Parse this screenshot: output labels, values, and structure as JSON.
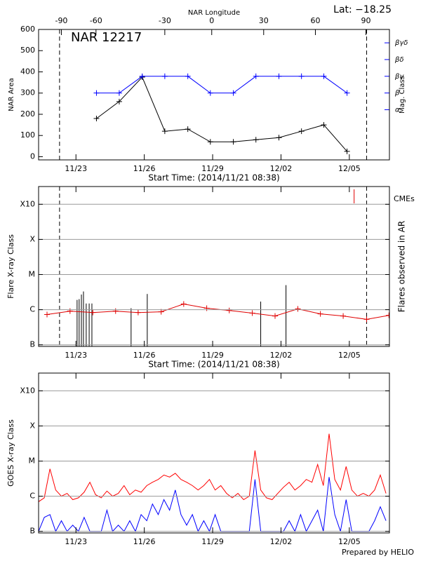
{
  "chart_data": [
    {
      "type": "line",
      "title": "NAR 12217",
      "corner_label": "Lat: −18.25",
      "x2label": "NAR Longitude",
      "xlabel": "Start Time: (2014/11/21 08:38)",
      "ylabel": "NAR Area",
      "y2label": "Mag. Class",
      "xlim": [
        0,
        15.4
      ],
      "xticks": [
        {
          "value": 1.64,
          "label": "11/23"
        },
        {
          "value": 4.64,
          "label": "11/26"
        },
        {
          "value": 7.64,
          "label": "11/29"
        },
        {
          "value": 10.64,
          "label": "12/02"
        },
        {
          "value": 13.64,
          "label": "12/05"
        }
      ],
      "x2ticks": [
        {
          "value": 1.0,
          "label": "-90"
        },
        {
          "value": 2.52,
          "label": "-60"
        },
        {
          "value": 5.54,
          "label": "-30"
        },
        {
          "value": 7.6,
          "label": "0"
        },
        {
          "value": 9.88,
          "label": "30"
        },
        {
          "value": 12.15,
          "label": "60"
        },
        {
          "value": 14.37,
          "label": "90"
        }
      ],
      "ylim": [
        -15,
        600
      ],
      "yticks": [
        0,
        100,
        200,
        300,
        400,
        500,
        600
      ],
      "y2lim": [
        -2,
        5.8
      ],
      "y2ticks": [
        {
          "value": 1,
          "label": "α"
        },
        {
          "value": 2,
          "label": "β"
        },
        {
          "value": 3,
          "label": "βγ"
        },
        {
          "value": 4,
          "label": "βδ"
        },
        {
          "value": 5,
          "label": "βγδ"
        }
      ],
      "y2color": "#0000ff",
      "markers": true,
      "vlines": [
        0.92,
        14.4
      ],
      "series": [
        {
          "color": "#000000",
          "x": [
            2.54,
            3.54,
            4.55,
            5.54,
            6.55,
            7.54,
            8.55,
            9.54,
            10.55,
            11.54,
            12.52,
            13.54
          ],
          "values": [
            180,
            260,
            375,
            120,
            130,
            70,
            70,
            80,
            90,
            120,
            150,
            25
          ]
        },
        {
          "color": "#0000ff",
          "axis": "y2",
          "x": [
            2.54,
            3.54,
            4.55,
            5.54,
            6.55,
            7.54,
            8.55,
            9.54,
            10.55,
            11.54,
            12.52,
            13.54
          ],
          "values": [
            2,
            2,
            3,
            3,
            3,
            2,
            2,
            3,
            3,
            3,
            3,
            2
          ]
        }
      ]
    },
    {
      "type": "line",
      "xlabel": "Start Time: (2014/11/21 08:38)",
      "ylabel": "Flare X-ray Class",
      "y2label": "Flares observed in AR",
      "cme_label": "CMEs",
      "cme_color": "#e00000",
      "cmes": [
        13.85
      ],
      "log": true,
      "grid": true,
      "markers": true,
      "vlines": [
        0.92,
        14.4
      ],
      "xlim": [
        0,
        15.4
      ],
      "xticks": [
        {
          "value": 1.64,
          "label": "11/23"
        },
        {
          "value": 4.64,
          "label": "11/26"
        },
        {
          "value": 7.64,
          "label": "11/29"
        },
        {
          "value": 10.64,
          "label": "12/02"
        },
        {
          "value": 13.64,
          "label": "12/05"
        }
      ],
      "ylim": [
        9e-08,
        0.0032
      ],
      "yticks": [
        {
          "value": 1e-07,
          "label": "B"
        },
        {
          "value": 1e-06,
          "label": "C"
        },
        {
          "value": 1e-05,
          "label": "M"
        },
        {
          "value": 0.0001,
          "label": "X"
        },
        {
          "value": 0.001,
          "label": "X10"
        }
      ],
      "flares": {
        "color": "#000000",
        "x": [
          1.69,
          1.78,
          1.88,
          1.97,
          2.09,
          2.22,
          2.34,
          4.06,
          4.77,
          9.75,
          10.86
        ],
        "values": [
          1.9e-06,
          2e-06,
          2.7e-06,
          3.3e-06,
          1.5e-06,
          1.5e-06,
          1.5e-06,
          1.1e-06,
          2.8e-06,
          1.7e-06,
          5e-06
        ]
      },
      "series": [
        {
          "color": "#e00000",
          "x": [
            0.37,
            1.38,
            2.38,
            3.38,
            4.37,
            5.38,
            6.37,
            7.38,
            8.37,
            9.38,
            10.38,
            11.38,
            12.37,
            13.37,
            14.4,
            15.38
          ],
          "values": [
            7.3e-07,
            9.1e-07,
            8.3e-07,
            9.1e-07,
            8.3e-07,
            8.7e-07,
            1.45e-06,
            1.1e-06,
            9.5e-07,
            8e-07,
            6.6e-07,
            1.05e-06,
            7.6e-07,
            6.6e-07,
            5.3e-07,
            6.9e-07
          ]
        }
      ]
    },
    {
      "type": "line",
      "ylabel": "GOES X-ray Class",
      "log": true,
      "grid": true,
      "xlim": [
        0,
        15.4
      ],
      "xticks": [
        {
          "value": 1.64,
          "label": "11/23"
        },
        {
          "value": 4.64,
          "label": "11/26"
        },
        {
          "value": 7.64,
          "label": "11/29"
        },
        {
          "value": 10.64,
          "label": "12/02"
        },
        {
          "value": 13.64,
          "label": "12/05"
        }
      ],
      "ylim": [
        9e-08,
        0.0032
      ],
      "yticks": [
        {
          "value": 1e-07,
          "label": "B"
        },
        {
          "value": 1e-06,
          "label": "C"
        },
        {
          "value": 1e-05,
          "label": "M"
        },
        {
          "value": 0.0001,
          "label": "X"
        },
        {
          "value": 0.001,
          "label": "X10"
        }
      ],
      "x": [
        0,
        0.25,
        0.5,
        0.75,
        1,
        1.25,
        1.5,
        1.75,
        2,
        2.25,
        2.5,
        2.75,
        3,
        3.25,
        3.5,
        3.75,
        4,
        4.25,
        4.5,
        4.75,
        5,
        5.25,
        5.5,
        5.75,
        6,
        6.25,
        6.5,
        6.75,
        7,
        7.25,
        7.5,
        7.75,
        8,
        8.25,
        8.5,
        8.75,
        9,
        9.25,
        9.5,
        9.75,
        10,
        10.25,
        10.5,
        10.75,
        11,
        11.25,
        11.5,
        11.75,
        12,
        12.25,
        12.5,
        12.75,
        13,
        13.25,
        13.5,
        13.75,
        14,
        14.25,
        14.5,
        14.75,
        15,
        15.25
      ],
      "series": [
        {
          "color": "#ff0000",
          "values": [
            7e-07,
            9e-07,
            6e-06,
            1.5e-06,
            1e-06,
            1.2e-06,
            8e-07,
            9e-07,
            1.3e-06,
            2.5e-06,
            1.1e-06,
            9e-07,
            1.4e-06,
            1e-06,
            1.2e-06,
            2e-06,
            1.1e-06,
            1.5e-06,
            1.3e-06,
            2e-06,
            2.5e-06,
            3e-06,
            4e-06,
            3.5e-06,
            4.5e-06,
            3e-06,
            2.5e-06,
            2e-06,
            1.5e-06,
            2e-06,
            3e-06,
            1.5e-06,
            2e-06,
            1.2e-06,
            9e-07,
            1.2e-06,
            8e-07,
            1e-06,
            2e-05,
            1.5e-06,
            9e-07,
            8e-07,
            1.2e-06,
            1.8e-06,
            2.5e-06,
            1.5e-06,
            2e-06,
            3e-06,
            2.5e-06,
            8e-06,
            2e-06,
            6e-05,
            3e-06,
            1.5e-06,
            7e-06,
            1.5e-06,
            1e-06,
            1.2e-06,
            1e-06,
            1.5e-06,
            4e-06,
            1.2e-06
          ]
        },
        {
          "color": "#0000ff",
          "values": [
            1e-07,
            2.5e-07,
            3e-07,
            1e-07,
            2e-07,
            1e-07,
            1.5e-07,
            1e-07,
            2.5e-07,
            1e-07,
            1e-07,
            1e-07,
            4e-07,
            1e-07,
            1.5e-07,
            1e-07,
            2e-07,
            1e-07,
            3e-07,
            2e-07,
            6e-07,
            3e-07,
            8e-07,
            4e-07,
            1.5e-06,
            3e-07,
            1.5e-07,
            3e-07,
            1e-07,
            2e-07,
            1e-07,
            3e-07,
            1e-07,
            1e-07,
            1e-07,
            1e-07,
            1e-07,
            1e-07,
            3e-06,
            1e-07,
            1e-07,
            1e-07,
            1e-07,
            1e-07,
            2e-07,
            1e-07,
            3e-07,
            1e-07,
            2e-07,
            4e-07,
            1e-07,
            3.5e-06,
            3e-07,
            1e-07,
            8e-07,
            1e-07,
            1e-07,
            1e-07,
            1e-07,
            2e-07,
            5e-07,
            2e-07
          ]
        }
      ]
    }
  ],
  "footer": "Prepared by HELIO"
}
